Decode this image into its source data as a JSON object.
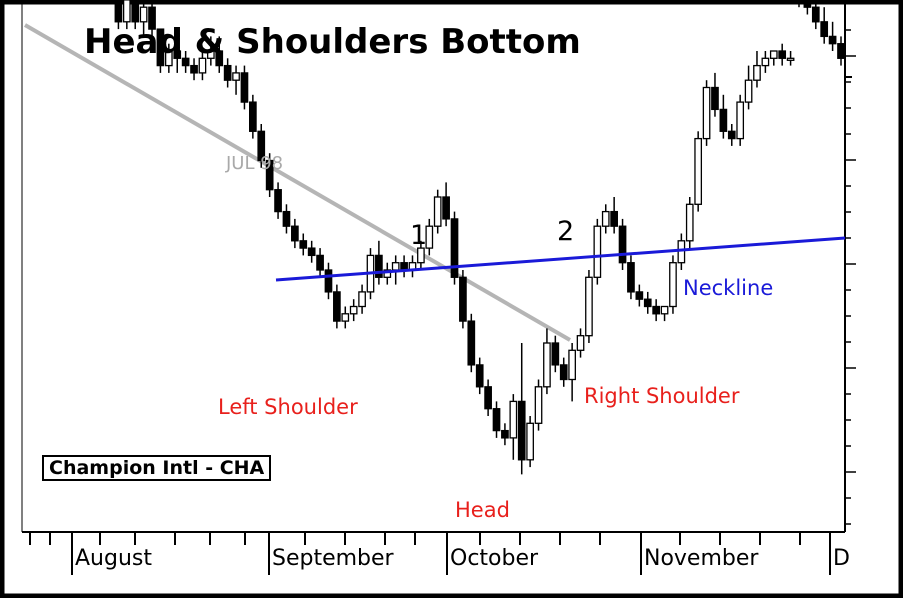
{
  "chart_data": {
    "type": "candlestick",
    "title": "Head & Shoulders Bottom",
    "stock_label": "Champion Intl - CHA",
    "x_tick_labels": [
      "August",
      "September",
      "October",
      "November",
      "D"
    ],
    "annotations": {
      "left_shoulder": "Left Shoulder",
      "head": "Head",
      "right_shoulder": "Right Shoulder",
      "neckline": "Neckline",
      "trendline": "JUL 98",
      "point1": "1",
      "point2": "2"
    },
    "y_axis_visible": false,
    "grid": false,
    "colors": {
      "background": "#ffffff",
      "frame": "#000000",
      "neckline": "#1a1ad8",
      "trendline": "#b0b0b0",
      "labels_red": "#e8201c"
    },
    "candles": [
      [
        58,
        62,
        56,
        60
      ],
      [
        60,
        61,
        55,
        56
      ],
      [
        56,
        57,
        51,
        52
      ],
      [
        52,
        56,
        51,
        55
      ],
      [
        55,
        56,
        49,
        50
      ],
      [
        50,
        54,
        48,
        53
      ],
      [
        53,
        54,
        46,
        47
      ],
      [
        47,
        50,
        45,
        49
      ],
      [
        49,
        50,
        44,
        45
      ],
      [
        45,
        47,
        42,
        43
      ],
      [
        43,
        44,
        38,
        39
      ],
      [
        39,
        40,
        33,
        34
      ],
      [
        34,
        38,
        33,
        37
      ],
      [
        37,
        38,
        33,
        34
      ],
      [
        34,
        37,
        32,
        36
      ],
      [
        36,
        37,
        31,
        33
      ],
      [
        33,
        33,
        27,
        28
      ],
      [
        28,
        31,
        27,
        30
      ],
      [
        30,
        31,
        27,
        29
      ],
      [
        29,
        30,
        27,
        28
      ],
      [
        28,
        29,
        26,
        27
      ],
      [
        27,
        30,
        26,
        29
      ],
      [
        29,
        32,
        28,
        30
      ],
      [
        30,
        32,
        27,
        28
      ],
      [
        28,
        29,
        25,
        26
      ],
      [
        26,
        28,
        24,
        27
      ],
      [
        27,
        28,
        22,
        23
      ],
      [
        23,
        24,
        18,
        19
      ],
      [
        19,
        20,
        14,
        15
      ],
      [
        15,
        16,
        10,
        11
      ],
      [
        11,
        12,
        7,
        8
      ],
      [
        8,
        9,
        5,
        6
      ],
      [
        6,
        7,
        3,
        4
      ],
      [
        4,
        5,
        2,
        3
      ],
      [
        3,
        4,
        1,
        2
      ],
      [
        2,
        3,
        -1,
        0
      ],
      [
        0,
        1,
        -4,
        -3
      ],
      [
        -3,
        -2,
        -8,
        -7
      ],
      [
        -7,
        -5,
        -8,
        -6
      ],
      [
        -6,
        -4,
        -7,
        -5
      ],
      [
        -5,
        -2,
        -6,
        -3
      ],
      [
        -3,
        3,
        -4,
        2
      ],
      [
        2,
        4,
        -2,
        -1
      ],
      [
        -1,
        1,
        -2,
        0
      ],
      [
        0,
        2,
        -2,
        1
      ],
      [
        1,
        2,
        -1,
        0
      ],
      [
        0,
        2,
        -1,
        1
      ],
      [
        1,
        4,
        0,
        3
      ],
      [
        3,
        7,
        2,
        6
      ],
      [
        6,
        11,
        5,
        10
      ],
      [
        10,
        12,
        6,
        7
      ],
      [
        7,
        8,
        -2,
        -1
      ],
      [
        -1,
        0,
        -8,
        -7
      ],
      [
        -7,
        -6,
        -14,
        -13
      ],
      [
        -13,
        -12,
        -17,
        -16
      ],
      [
        -16,
        -15,
        -20,
        -19
      ],
      [
        -19,
        -18,
        -23,
        -22
      ],
      [
        -22,
        -21,
        -24,
        -23
      ],
      [
        -23,
        -17,
        -26,
        -18
      ],
      [
        -18,
        -10,
        -28,
        -26
      ],
      [
        -26,
        -20,
        -27,
        -21
      ],
      [
        -21,
        -15,
        -22,
        -16
      ],
      [
        -16,
        -8,
        -17,
        -10
      ],
      [
        -10,
        -9,
        -14,
        -13
      ],
      [
        -13,
        -12,
        -16,
        -15
      ],
      [
        -15,
        -10,
        -18,
        -11
      ],
      [
        -11,
        -8,
        -12,
        -9
      ],
      [
        -9,
        0,
        -10,
        -1
      ],
      [
        -1,
        7,
        -2,
        6
      ],
      [
        6,
        9,
        5,
        8
      ],
      [
        8,
        10,
        5,
        6
      ],
      [
        6,
        7,
        0,
        1
      ],
      [
        1,
        2,
        -4,
        -3
      ],
      [
        -3,
        -2,
        -5,
        -4
      ],
      [
        -4,
        -3,
        -6,
        -5
      ],
      [
        -5,
        -4,
        -7,
        -6
      ],
      [
        -6,
        -5,
        -7,
        -5
      ],
      [
        -5,
        2,
        -6,
        1
      ],
      [
        1,
        5,
        0,
        4
      ],
      [
        4,
        10,
        3,
        9
      ],
      [
        9,
        19,
        8,
        18
      ],
      [
        18,
        26,
        17,
        25
      ],
      [
        25,
        27,
        21,
        22
      ],
      [
        22,
        24,
        18,
        19
      ],
      [
        19,
        20,
        17,
        18
      ],
      [
        18,
        24,
        17,
        23
      ],
      [
        23,
        28,
        22,
        26
      ],
      [
        26,
        30,
        25,
        28
      ],
      [
        28,
        30,
        27,
        29
      ],
      [
        29,
        30,
        28,
        30
      ],
      [
        30,
        31,
        28,
        29
      ],
      [
        29,
        30,
        28,
        29
      ],
      [
        41,
        46,
        36,
        38
      ],
      [
        38,
        41,
        35,
        36
      ],
      [
        36,
        38,
        33,
        34
      ],
      [
        34,
        36,
        31,
        32
      ],
      [
        32,
        34,
        30,
        31
      ],
      [
        31,
        32,
        28,
        29
      ]
    ]
  }
}
